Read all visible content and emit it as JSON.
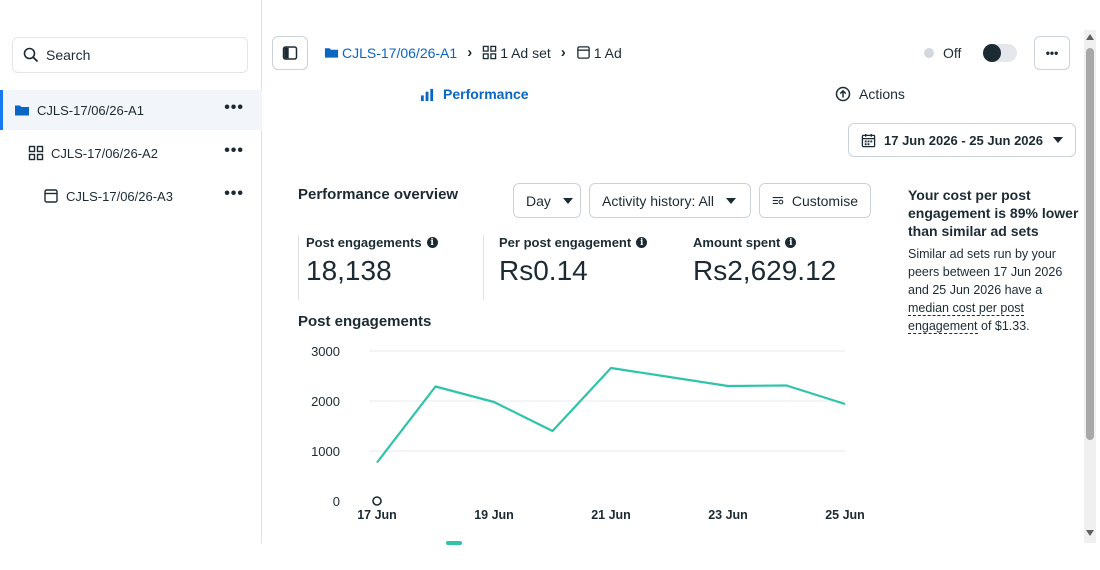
{
  "sidebar": {
    "search_placeholder": "Search",
    "items": [
      {
        "label": "CJLS-17/06/26-A1",
        "icon": "folder-icon",
        "more": "•••"
      },
      {
        "label": "CJLS-17/06/26-A2",
        "icon": "grid-icon",
        "more": "•••"
      },
      {
        "label": "CJLS-17/06/26-A3",
        "icon": "ad-icon",
        "more": "•••"
      }
    ]
  },
  "topbar": {
    "breadcrumbs": [
      {
        "label": "CJLS-17/06/26-A1",
        "icon": "folder-icon"
      },
      {
        "label": "1 Ad set",
        "icon": "grid-icon"
      },
      {
        "label": "1 Ad",
        "icon": "ad-icon"
      }
    ],
    "status_label": "Off",
    "more": "•••"
  },
  "tabs": {
    "performance": "Performance",
    "actions": "Actions"
  },
  "date_range": "17 Jun 2026 - 25 Jun 2026",
  "overview": {
    "title": "Performance overview",
    "granularity": "Day",
    "activity": "Activity history: All",
    "customise": "Customise",
    "metrics": [
      {
        "label": "Post engagements",
        "value": "18,138"
      },
      {
        "label": "Per post engagement",
        "value": "Rs0.14"
      },
      {
        "label": "Amount spent",
        "value": "Rs2,629.12"
      }
    ]
  },
  "insight": {
    "headline": "Your cost per post engagement is 89% lower than similar ad sets",
    "body_prefix": "Similar ad sets run by your peers between 17 Jun 2026 and 25 Jun 2026 have a ",
    "body_link": "median cost per post engagement",
    "body_suffix": " of $1.33."
  },
  "chart_data": {
    "type": "line",
    "title": "Post engagements",
    "x": [
      "17 Jun",
      "18 Jun",
      "19 Jun",
      "20 Jun",
      "21 Jun",
      "22 Jun",
      "23 Jun",
      "24 Jun",
      "25 Jun"
    ],
    "x_tick_labels": [
      "17 Jun",
      "19 Jun",
      "21 Jun",
      "23 Jun",
      "25 Jun"
    ],
    "series": [
      {
        "values": [
          770,
          2290,
          1980,
          1400,
          2660,
          2480,
          2300,
          2310,
          1940
        ]
      }
    ],
    "ylim": [
      0,
      3000
    ],
    "y_ticks": [
      0,
      1000,
      2000,
      3000
    ],
    "grid": true,
    "colors": {
      "line": "#2ec4a9",
      "grid": "#e6e9ed"
    }
  }
}
